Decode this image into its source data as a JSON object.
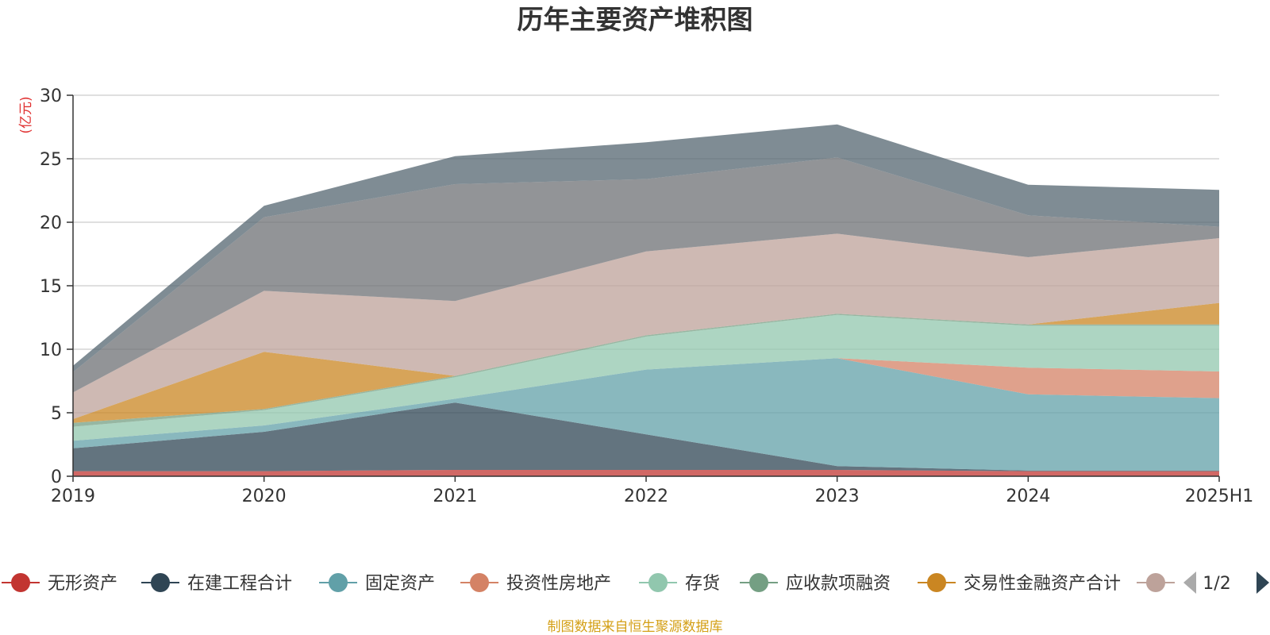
{
  "chart_data": {
    "type": "area",
    "stacked": true,
    "title": "历年主要资产堆积图",
    "y_unit": "(亿元)",
    "categories": [
      "2019",
      "2020",
      "2021",
      "2022",
      "2023",
      "2024",
      "2025H1"
    ],
    "ylim": [
      0,
      30
    ],
    "yticks": [
      0,
      5,
      10,
      15,
      20,
      25,
      30
    ],
    "grid": true,
    "series": [
      {
        "name": "无形资产",
        "color": "#c23531",
        "values": [
          0.4,
          0.4,
          0.5,
          0.5,
          0.5,
          0.4,
          0.4
        ]
      },
      {
        "name": "在建工程合计",
        "color": "#2f4554",
        "values": [
          1.8,
          3.1,
          5.3,
          2.8,
          0.3,
          0.05,
          0.05
        ]
      },
      {
        "name": "固定资产",
        "color": "#61a0a8",
        "values": [
          0.6,
          0.5,
          0.3,
          5.1,
          8.5,
          6.0,
          5.7
        ]
      },
      {
        "name": "投资性房地产",
        "color": "#d48265",
        "values": [
          0,
          0,
          0,
          0,
          0,
          2.1,
          2.1
        ]
      },
      {
        "name": "存货",
        "color": "#91c7ae",
        "values": [
          1.1,
          1.2,
          1.7,
          2.6,
          3.4,
          3.3,
          3.6
        ]
      },
      {
        "name": "应收款项融资",
        "color": "#749f83",
        "values": [
          0.3,
          0.1,
          0.1,
          0.1,
          0.1,
          0.1,
          0.1
        ]
      },
      {
        "name": "交易性金融资产合计",
        "color": "#ca8622",
        "values": [
          0.3,
          4.5,
          0,
          0,
          0,
          0,
          1.7
        ]
      },
      {
        "name": "",
        "color": "#bda29a",
        "values": [
          2.1,
          4.8,
          5.9,
          6.6,
          6.3,
          5.3,
          5.1
        ]
      },
      {
        "name": "",
        "color": "#6e7074",
        "values": [
          1.6,
          5.8,
          9.2,
          5.7,
          6.0,
          3.3,
          0.9
        ]
      },
      {
        "name": "",
        "color": "#546570",
        "values": [
          0.5,
          0.9,
          2.2,
          2.9,
          2.6,
          2.4,
          2.9
        ]
      }
    ]
  },
  "legend": {
    "items": [
      {
        "label": "无形资产",
        "color": "#c23531"
      },
      {
        "label": "在建工程合计",
        "color": "#2f4554"
      },
      {
        "label": "固定资产",
        "color": "#61a0a8"
      },
      {
        "label": "投资性房地产",
        "color": "#d48265"
      },
      {
        "label": "存货",
        "color": "#91c7ae"
      },
      {
        "label": "应收款项融资",
        "color": "#749f83"
      },
      {
        "label": "交易性金融资产合计",
        "color": "#ca8622"
      },
      {
        "label": "",
        "color": "#bda29a"
      }
    ],
    "page": "1/2",
    "prev_icon": "triangle-left-icon",
    "next_icon": "triangle-right-icon"
  },
  "source": "制图数据来自恒生聚源数据库"
}
